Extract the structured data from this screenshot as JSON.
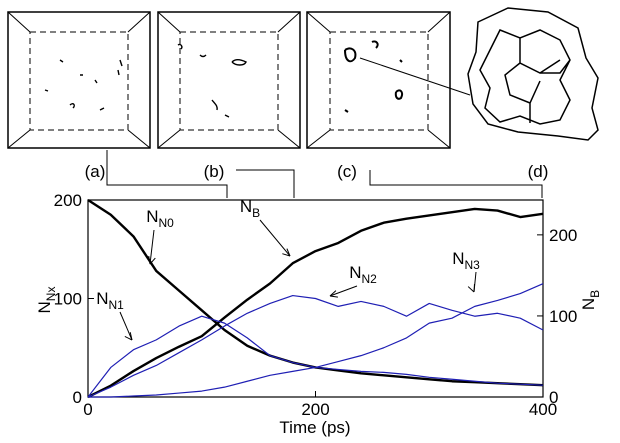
{
  "chart_data": {
    "type": "line",
    "xlabel": "Time (ps)",
    "ylabel": {
      "text": "N",
      "sub": "Nx"
    },
    "y2label": {
      "text": "N",
      "sub": "B"
    },
    "panels": [
      "(a)",
      "(b)",
      "(c)",
      "(d)"
    ],
    "x": [
      0,
      20,
      40,
      60,
      80,
      100,
      120,
      140,
      160,
      180,
      200,
      220,
      240,
      260,
      280,
      300,
      320,
      340,
      360,
      380,
      400
    ],
    "xlim": [
      0,
      400
    ],
    "xticks": [
      0,
      200,
      400
    ],
    "ylim": [
      0,
      200
    ],
    "yticks": [
      0,
      100,
      200
    ],
    "y2lim": [
      0,
      243
    ],
    "y2ticks": [
      0,
      100,
      200
    ],
    "series": [
      {
        "label": {
          "text": "N",
          "sub": "N0"
        },
        "color": "#000000",
        "width": 2.4,
        "values": [
          200,
          185,
          163,
          128,
          108,
          88,
          68,
          52,
          42,
          35,
          30,
          27,
          24,
          22,
          20,
          18,
          16,
          15,
          14,
          13,
          12
        ]
      },
      {
        "label": {
          "text": "N",
          "sub": "B"
        },
        "color": "#000000",
        "width": 2.4,
        "axis": "y2",
        "values": [
          0,
          14,
          32,
          48,
          62,
          75,
          98,
          120,
          140,
          165,
          180,
          190,
          205,
          215,
          220,
          224,
          228,
          232,
          230,
          222,
          226
        ]
      },
      {
        "label": {
          "text": "N",
          "sub": "N1"
        },
        "color": "#1f1fb4",
        "width": 1.2,
        "values": [
          0,
          30,
          48,
          58,
          72,
          82,
          75,
          60,
          42,
          35,
          30,
          28,
          26,
          25,
          23,
          20,
          18,
          16,
          14,
          13,
          12
        ]
      },
      {
        "label": {
          "text": "N",
          "sub": "N2"
        },
        "color": "#1f1fb4",
        "width": 1.2,
        "values": [
          0,
          10,
          22,
          32,
          45,
          58,
          72,
          85,
          95,
          103,
          100,
          92,
          97,
          92,
          82,
          95,
          88,
          82,
          85,
          80,
          68
        ]
      },
      {
        "label": {
          "text": "N",
          "sub": "N3"
        },
        "color": "#1f1fb4",
        "width": 1.2,
        "values": [
          0,
          0,
          1,
          2,
          4,
          6,
          10,
          16,
          22,
          26,
          30,
          36,
          42,
          50,
          60,
          75,
          80,
          92,
          98,
          105,
          115
        ]
      }
    ]
  }
}
